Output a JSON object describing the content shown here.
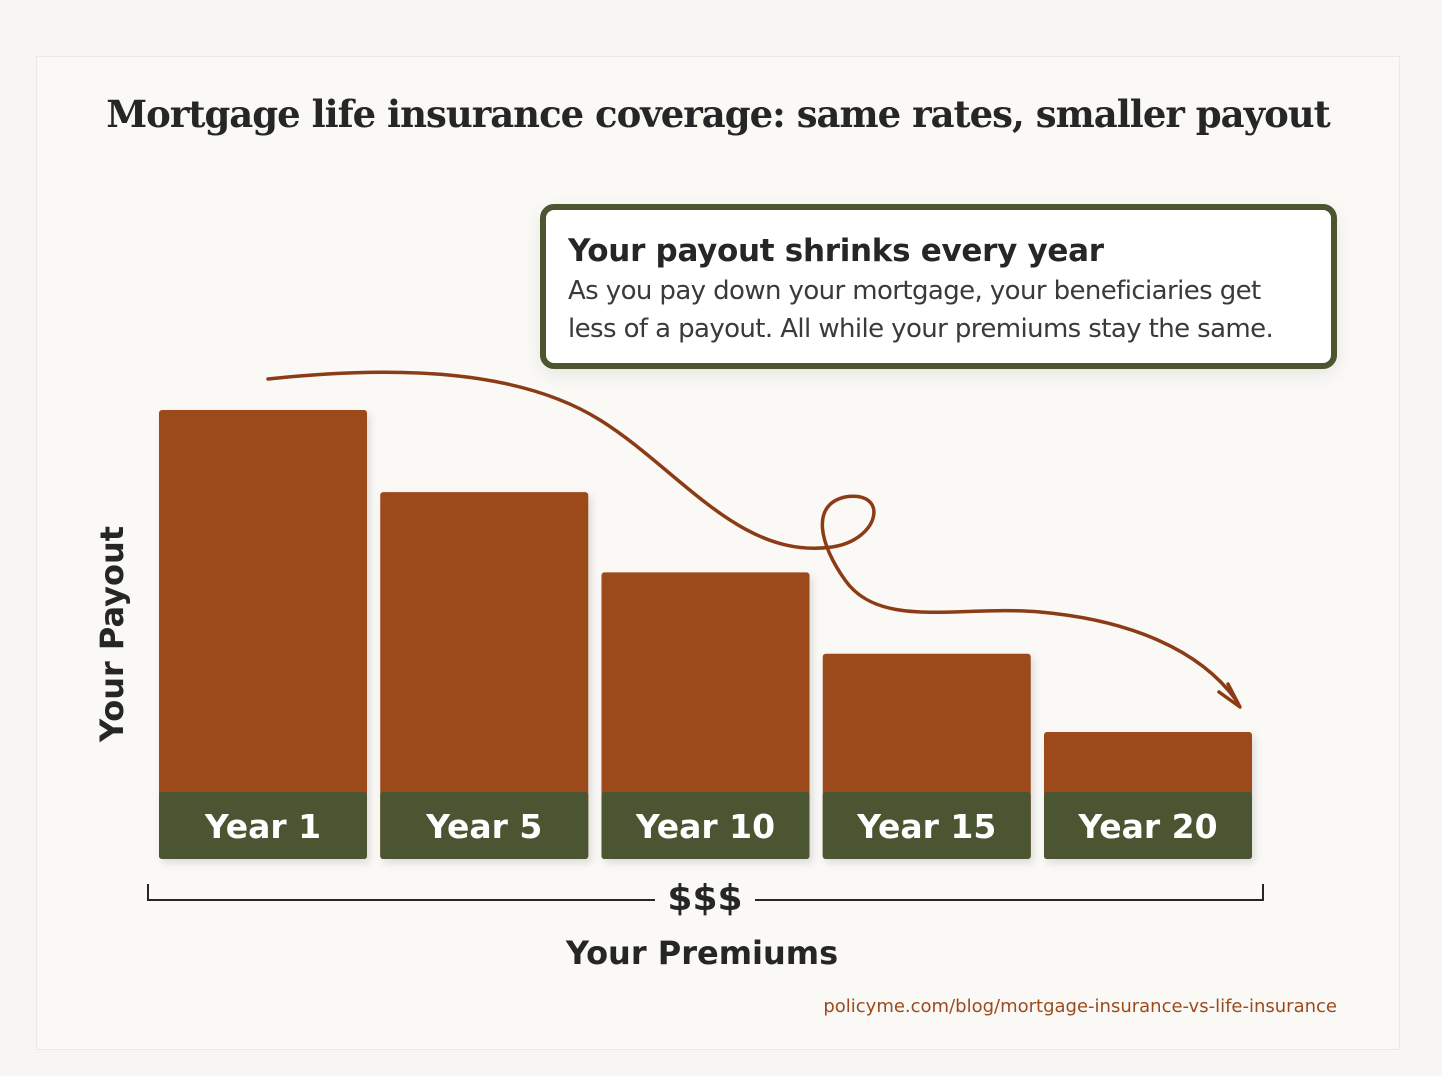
{
  "title": "Mortgage life insurance coverage: same rates, smaller payout",
  "callout": {
    "heading": "Your payout shrinks every year",
    "line1": "As you pay down your mortgage, your beneficiaries get",
    "line2": "less of a payout. All while your premiums stay the same."
  },
  "source": "policyme.com/blog/mortgage-insurance-vs-life-insurance",
  "colors": {
    "bar": "#9c4a1d",
    "label_band": "#4b5530",
    "arrow": "#8b3b16",
    "text": "#262626"
  },
  "chart_data": {
    "type": "bar",
    "title": "Mortgage life insurance coverage: same rates, smaller payout",
    "categories": [
      "Year 1",
      "Year 5",
      "Year 10",
      "Year 15",
      "Year 20"
    ],
    "values": [
      100,
      78.5,
      57.5,
      36.2,
      15.7
    ],
    "ylabel": "Your Payout",
    "xlabel": "Your Premiums",
    "premium_marker": "$$$",
    "ylim": [
      0,
      100
    ],
    "grid": false,
    "legend": "none"
  }
}
